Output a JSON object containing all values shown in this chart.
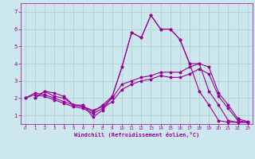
{
  "title": "",
  "xlabel": "Windchill (Refroidissement éolien,°C)",
  "background_color": "#cce8ee",
  "grid_color": "#aacccc",
  "line_color": "#990099",
  "xlim": [
    -0.5,
    23.5
  ],
  "ylim": [
    0.5,
    7.5
  ],
  "yticks": [
    1,
    2,
    3,
    4,
    5,
    6,
    7
  ],
  "xticks": [
    0,
    1,
    2,
    3,
    4,
    5,
    6,
    7,
    8,
    9,
    10,
    11,
    12,
    13,
    14,
    15,
    16,
    17,
    18,
    19,
    20,
    21,
    22,
    23
  ],
  "y1_x": [
    1,
    2,
    3,
    4,
    5,
    6,
    7,
    8,
    9,
    10,
    11,
    12,
    13,
    14,
    15,
    16,
    17,
    18,
    19,
    20,
    21,
    22,
    23
  ],
  "y1_y": [
    2.0,
    2.4,
    2.3,
    2.1,
    1.6,
    1.6,
    0.9,
    1.3,
    2.1,
    3.8,
    5.8,
    5.5,
    6.8,
    6.0,
    6.0,
    5.4,
    4.0,
    2.4,
    1.6,
    0.7,
    0.6,
    0.6,
    0.6
  ],
  "y2_x": [
    0,
    1,
    2,
    3,
    4,
    5,
    6,
    7,
    8,
    9,
    10,
    11,
    12,
    13,
    14,
    15,
    16,
    17,
    18,
    19,
    20,
    21,
    22,
    23
  ],
  "y2_y": [
    2.0,
    2.3,
    2.2,
    2.0,
    1.8,
    1.6,
    1.5,
    1.3,
    1.5,
    2.0,
    2.8,
    3.0,
    3.2,
    3.3,
    3.5,
    3.5,
    3.5,
    3.8,
    4.0,
    3.8,
    2.3,
    1.6,
    0.8,
    0.65
  ],
  "y3_x": [
    1,
    2,
    3,
    4,
    5,
    6,
    7,
    8,
    9,
    10,
    11,
    12,
    13,
    14,
    15,
    16,
    17,
    18,
    19,
    20,
    21,
    22,
    23
  ],
  "y3_y": [
    2.0,
    2.4,
    2.1,
    2.0,
    1.6,
    1.5,
    1.2,
    1.6,
    2.1,
    3.8,
    5.8,
    5.5,
    6.8,
    6.0,
    6.0,
    5.4,
    4.0,
    4.0,
    2.4,
    1.6,
    0.7,
    0.6,
    0.6
  ],
  "y4_x": [
    0,
    1,
    2,
    3,
    4,
    5,
    6,
    7,
    8,
    9,
    10,
    11,
    12,
    13,
    14,
    15,
    16,
    17,
    18,
    19,
    20,
    21,
    22,
    23
  ],
  "y4_y": [
    2.0,
    2.2,
    2.1,
    1.9,
    1.7,
    1.5,
    1.4,
    1.1,
    1.4,
    1.8,
    2.5,
    2.8,
    3.0,
    3.1,
    3.3,
    3.2,
    3.2,
    3.4,
    3.7,
    3.4,
    2.1,
    1.4,
    0.7,
    0.6
  ]
}
